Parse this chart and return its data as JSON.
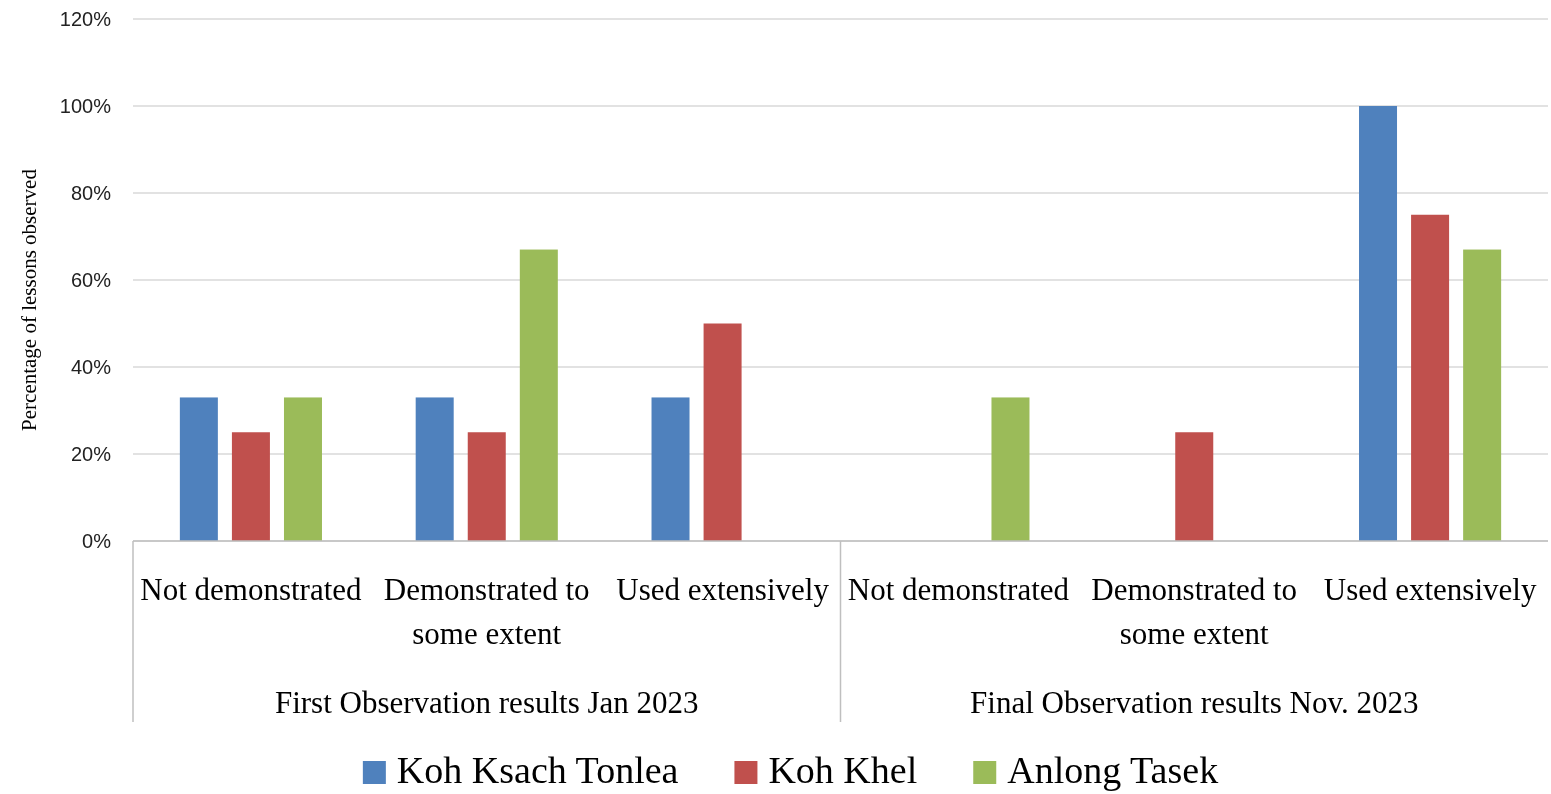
{
  "chart_data": {
    "type": "bar",
    "ylabel": "Percentage of lessons observed",
    "categories": [
      "Not demonstrated",
      "Demonstrated to some extent",
      "Used extensively",
      "Not demonstrated",
      "Demonstrated to some extent",
      "Used extensively"
    ],
    "series": [
      {
        "name": "Koh Ksach Tonlea",
        "color": "#4f81bd",
        "values": [
          33,
          33,
          33,
          0,
          0,
          100
        ]
      },
      {
        "name": "Koh Khel",
        "color": "#c0504d",
        "values": [
          25,
          25,
          50,
          0,
          25,
          75
        ]
      },
      {
        "name": "Anlong Tasek",
        "color": "#9bbb59",
        "values": [
          33,
          67,
          0,
          33,
          0,
          67
        ]
      }
    ],
    "ylim": [
      0,
      120
    ],
    "yticks": [
      {
        "value": 0,
        "label": "0%"
      },
      {
        "value": 20,
        "label": "20%"
      },
      {
        "value": 40,
        "label": "40%"
      },
      {
        "value": 60,
        "label": "60%"
      },
      {
        "value": 80,
        "label": "80%"
      },
      {
        "value": 100,
        "label": "100%"
      },
      {
        "value": 120,
        "label": "120%"
      }
    ],
    "grid": "y",
    "legend": "bottom",
    "annotations": [
      "First Observation results Jan 2023",
      "Final Observation results Nov. 2023"
    ]
  }
}
